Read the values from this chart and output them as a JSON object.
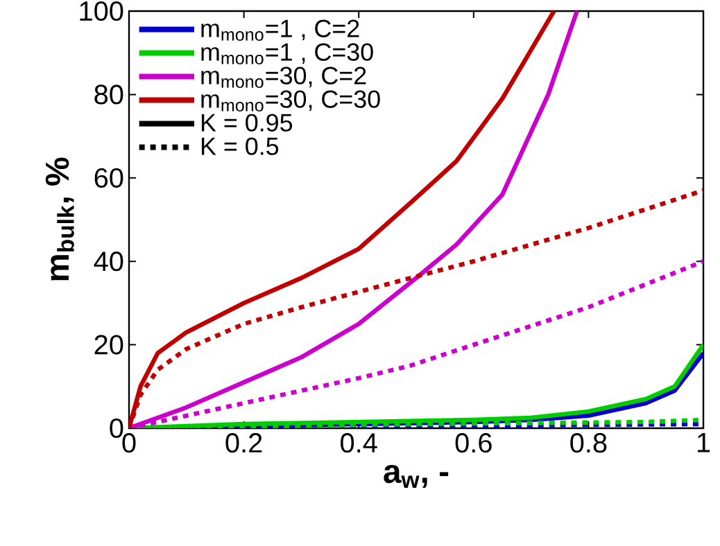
{
  "chart_data": {
    "type": "line",
    "xlabel": "a$_{w}$, -",
    "ylabel": "m$_{bulk}$, %",
    "xlim": [
      0,
      1
    ],
    "ylim": [
      0,
      100
    ],
    "xticks": [
      0,
      0.2,
      0.4,
      0.6,
      0.8,
      1
    ],
    "yticks": [
      0,
      20,
      40,
      60,
      80,
      100
    ],
    "grid": false,
    "legend": "top left",
    "marker": "none",
    "series": [
      {
        "name": "m$_{mono}$=1 , C=2",
        "color": "#0000cc",
        "line_style": "solid",
        "x": [
          0,
          0.2,
          0.4,
          0.6,
          0.7,
          0.8,
          0.9,
          0.95,
          1
        ],
        "values": [
          0,
          0.5,
          1,
          1.5,
          2,
          3,
          6,
          9,
          18
        ]
      },
      {
        "name": "m$_{mono}$=1 , C=30",
        "color": "#00cc00",
        "line_style": "solid",
        "x": [
          0,
          0.2,
          0.4,
          0.6,
          0.7,
          0.8,
          0.9,
          0.95,
          1
        ],
        "values": [
          0,
          1,
          1.5,
          2,
          2.5,
          4,
          7,
          10,
          20
        ]
      },
      {
        "name": "m$_{mono}$=30, C=2",
        "color": "#cc00cc",
        "line_style": "solid",
        "x": [
          0,
          0.1,
          0.2,
          0.25,
          0.3,
          0.4,
          0.5,
          0.57,
          0.65,
          0.73,
          0.78
        ],
        "values": [
          0,
          5,
          11,
          14,
          17,
          25,
          36,
          44,
          56,
          80,
          100
        ]
      },
      {
        "name": "m$_{mono}$=30, C=30",
        "color": "#c00000",
        "line_style": "solid",
        "x": [
          0,
          0.02,
          0.05,
          0.1,
          0.2,
          0.3,
          0.4,
          0.49,
          0.57,
          0.65,
          0.74
        ],
        "values": [
          0,
          10,
          18,
          23,
          30,
          36,
          43,
          54,
          64,
          79,
          100
        ]
      },
      {
        "name": "K = 0.95",
        "color": "#000000",
        "line_style": "solid"
      },
      {
        "name": "K = 0.5",
        "color": "#000000",
        "line_style": "dotted"
      },
      {
        "color": "#0000cc",
        "line_style": "dotted",
        "x": [
          0,
          0.5,
          1
        ],
        "values": [
          0,
          0.5,
          1
        ]
      },
      {
        "color": "#00cc00",
        "line_style": "dotted",
        "x": [
          0,
          0.5,
          0.9,
          1
        ],
        "values": [
          0,
          1,
          1.5,
          2
        ]
      },
      {
        "color": "#cc00cc",
        "line_style": "dotted",
        "x": [
          0,
          0.2,
          0.4,
          0.49,
          0.6,
          0.8,
          1
        ],
        "values": [
          0,
          6,
          12,
          15,
          20,
          29,
          40
        ]
      },
      {
        "color": "#c00000",
        "line_style": "dotted",
        "x": [
          0,
          0.02,
          0.05,
          0.1,
          0.2,
          0.3,
          0.49,
          0.6,
          0.8,
          1
        ],
        "values": [
          0,
          8,
          14,
          19,
          25,
          29,
          36,
          40,
          48,
          57
        ]
      }
    ]
  }
}
